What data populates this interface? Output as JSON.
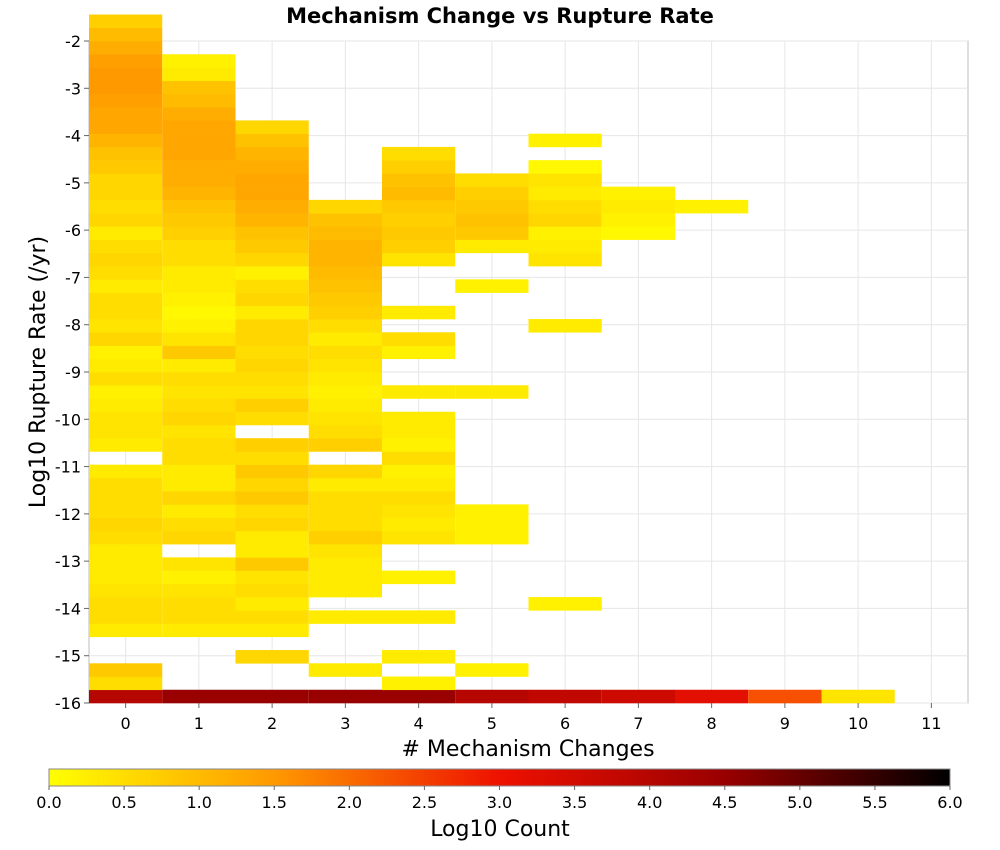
{
  "chart_data": {
    "type": "heatmap",
    "title": "Mechanism Change vs Rupture Rate",
    "xlabel": "# Mechanism Changes",
    "ylabel": "Log10 Rupture Rate (/yr)",
    "xlim": [
      -0.5,
      11.5
    ],
    "ylim": [
      -16,
      -2
    ],
    "x_ticks": [
      "0",
      "1",
      "2",
      "3",
      "4",
      "5",
      "6",
      "7",
      "8",
      "9",
      "10",
      "11"
    ],
    "y_ticks": [
      "-2",
      "-3",
      "-4",
      "-5",
      "-6",
      "-7",
      "-8",
      "-9",
      "-10",
      "-11",
      "-12",
      "-13",
      "-14",
      "-15",
      "-16"
    ],
    "colorbar": {
      "label": "Log10 Count",
      "min": 0.0,
      "max": 6.0,
      "ticks": [
        "0.0",
        "0.5",
        "1.0",
        "1.5",
        "2.0",
        "2.5",
        "3.0",
        "3.5",
        "4.0",
        "4.5",
        "5.0",
        "5.5",
        "6.0"
      ],
      "stops": [
        "#ffff00",
        "#ff9900",
        "#ee1100",
        "#990000",
        "#000000"
      ]
    },
    "y_bin_width": 0.28,
    "columns": [
      {
        "x": 0,
        "values": [
          4.0,
          0.5,
          0.8,
          0.0,
          0.0,
          0.3,
          0.5,
          0.5,
          0.4,
          0.3,
          0.3,
          0.3,
          0.5,
          0.6,
          0.5,
          0.5,
          0.5,
          0.3,
          0.0,
          0.3,
          0.4,
          0.4,
          0.3,
          0.2,
          0.5,
          0.3,
          0.2,
          0.6,
          0.4,
          0.5,
          0.5,
          0.3,
          0.5,
          0.6,
          0.5,
          0.3,
          0.6,
          0.5,
          0.6,
          0.6,
          0.8,
          0.9,
          1.1,
          1.3,
          1.3,
          1.4,
          1.5,
          1.5,
          1.4,
          1.2,
          1.0,
          0.7
        ]
      },
      {
        "x": 1,
        "values": [
          4.5,
          0.0,
          0.0,
          0.0,
          0.0,
          0.3,
          0.5,
          0.5,
          0.4,
          0.2,
          0.4,
          0.0,
          0.6,
          0.5,
          0.3,
          0.6,
          0.3,
          0.3,
          0.5,
          0.5,
          0.4,
          0.6,
          0.5,
          0.4,
          0.5,
          0.3,
          0.8,
          0.4,
          0.2,
          0.1,
          0.2,
          0.3,
          0.3,
          0.5,
          0.5,
          0.7,
          0.8,
          0.9,
          1.1,
          1.2,
          1.2,
          1.3,
          1.3,
          1.3,
          1.2,
          1.0,
          0.9,
          0.3,
          0.2
        ]
      },
      {
        "x": 2,
        "values": [
          4.5,
          0.0,
          0.0,
          0.6,
          0.0,
          0.3,
          0.5,
          0.3,
          0.5,
          0.4,
          0.8,
          0.3,
          0.3,
          0.6,
          0.5,
          0.8,
          0.6,
          0.8,
          0.5,
          0.7,
          0.0,
          0.5,
          0.7,
          0.4,
          0.5,
          0.6,
          0.5,
          0.6,
          0.6,
          0.3,
          0.6,
          0.5,
          0.2,
          0.6,
          0.8,
          0.9,
          1.1,
          1.2,
          1.3,
          1.3,
          1.2,
          1.1,
          0.9,
          0.6
        ]
      },
      {
        "x": 3,
        "values": [
          4.5,
          0.0,
          0.3,
          0.0,
          0.0,
          0.0,
          0.3,
          0.0,
          0.3,
          0.3,
          0.3,
          0.4,
          0.7,
          0.5,
          0.5,
          0.5,
          0.3,
          0.6,
          0.0,
          0.7,
          0.5,
          0.4,
          0.3,
          0.2,
          0.3,
          0.4,
          0.5,
          0.3,
          0.5,
          0.7,
          0.8,
          0.9,
          1.0,
          1.1,
          1.1,
          1.0,
          0.9,
          0.6
        ]
      },
      {
        "x": 4,
        "values": [
          4.5,
          0.2,
          0.0,
          0.3,
          0.0,
          0.0,
          0.3,
          0.0,
          0.0,
          0.2,
          0.0,
          0.0,
          0.4,
          0.3,
          0.4,
          0.5,
          0.3,
          0.2,
          0.5,
          0.2,
          0.3,
          0.3,
          0.0,
          0.3,
          0.0,
          0.0,
          0.2,
          0.5,
          0.0,
          0.3,
          0.0,
          0.0,
          0.0,
          0.4,
          0.7,
          0.8,
          0.7,
          0.8,
          1.0,
          0.9,
          0.7,
          0.5
        ]
      },
      {
        "x": 5,
        "values": [
          4.0,
          0.0,
          0.2,
          0.0,
          0.0,
          0.0,
          0.0,
          0.0,
          0.0,
          0.0,
          0.0,
          0.0,
          0.2,
          0.2,
          0.2,
          0.0,
          0.0,
          0.0,
          0.0,
          0.0,
          0.0,
          0.0,
          0.0,
          0.3,
          0.0,
          0.0,
          0.0,
          0.0,
          0.0,
          0.0,
          0.0,
          0.2,
          0.0,
          0.0,
          0.3,
          0.8,
          0.9,
          0.8,
          0.7,
          0.5
        ]
      },
      {
        "x": 6,
        "values": [
          3.8,
          0.0,
          0.0,
          0.0,
          0.0,
          0.0,
          0.0,
          0.2,
          0.0,
          0.0,
          0.0,
          0.0,
          0.0,
          0.0,
          0.0,
          0.0,
          0.0,
          0.0,
          0.0,
          0.0,
          0.0,
          0.0,
          0.0,
          0.0,
          0.0,
          0.0,
          0.0,
          0.0,
          0.3,
          0.0,
          0.0,
          0.0,
          0.0,
          0.4,
          0.3,
          0.2,
          0.6,
          0.5,
          0.3,
          0.4,
          0.1,
          0.0,
          0.2
        ]
      },
      {
        "x": 7,
        "values": [
          3.6,
          0.0,
          0.0,
          0.0,
          0.0,
          0.0,
          0.0,
          0.0,
          0.0,
          0.0,
          0.0,
          0.0,
          0.0,
          0.0,
          0.0,
          0.0,
          0.0,
          0.0,
          0.0,
          0.0,
          0.0,
          0.0,
          0.0,
          0.0,
          0.0,
          0.0,
          0.0,
          0.0,
          0.0,
          0.0,
          0.0,
          0.0,
          0.0,
          0.0,
          0.0,
          0.1,
          0.2,
          0.3,
          0.2
        ]
      },
      {
        "x": 8,
        "values": [
          3.2,
          0.0,
          0.0,
          0.0,
          0.0,
          0.0,
          0.0,
          0.0,
          0.0,
          0.0,
          0.0,
          0.0,
          0.0,
          0.0,
          0.0,
          0.0,
          0.0,
          0.0,
          0.0,
          0.0,
          0.0,
          0.0,
          0.0,
          0.0,
          0.0,
          0.0,
          0.0,
          0.0,
          0.0,
          0.0,
          0.0,
          0.0,
          0.0,
          0.0,
          0.0,
          0.0,
          0.0,
          0.2
        ]
      },
      {
        "x": 9,
        "values": [
          2.3
        ]
      },
      {
        "x": 10,
        "values": [
          0.4
        ]
      }
    ]
  }
}
